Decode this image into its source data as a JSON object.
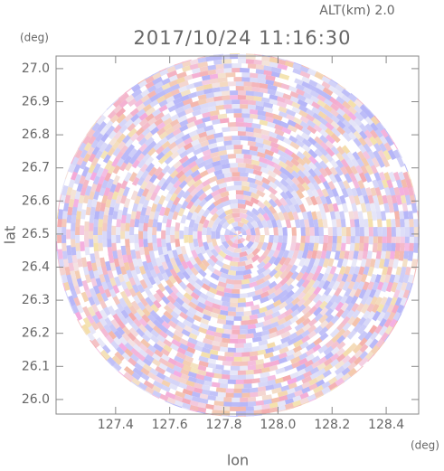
{
  "chart_data": {
    "type": "radar-ppi",
    "title": "2017/10/24 11:16:30",
    "subtitle": "ALT(km) 2.0",
    "x_label": "lon",
    "x_unit": "(deg)",
    "y_label": "lat",
    "y_unit": "(deg)",
    "xlim": [
      127.18,
      128.52
    ],
    "xticks": [
      127.4,
      127.6,
      127.8,
      {
        "value": 128.0,
        "label": "128.0"
      },
      128.2,
      128.4
    ],
    "ylim": [
      25.956,
      27.038
    ],
    "yticks": [
      {
        "value": 26.0,
        "label": "26.0"
      },
      26.1,
      26.2,
      26.3,
      26.4,
      26.5,
      26.6,
      26.7,
      26.8,
      26.9,
      {
        "value": 27.0,
        "label": "27.0"
      }
    ]
  }
}
